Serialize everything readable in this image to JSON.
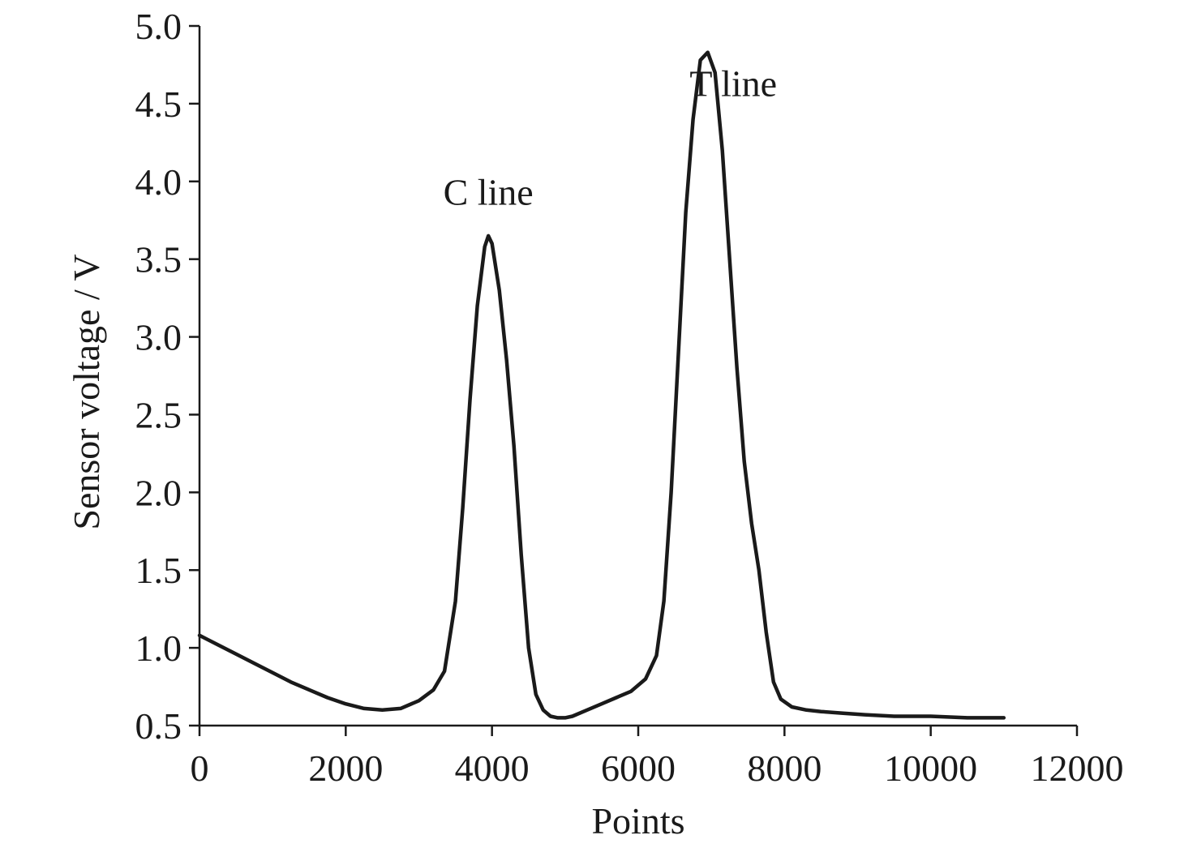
{
  "chart_data": {
    "type": "line",
    "xlabel": "Points",
    "ylabel": "Sensor voltage / V",
    "xlim": [
      0,
      12000
    ],
    "ylim": [
      0.5,
      5.0
    ],
    "xticks": [
      0,
      2000,
      4000,
      6000,
      8000,
      10000,
      12000
    ],
    "yticks": [
      "0.5",
      "1.0",
      "1.5",
      "2.0",
      "2.5",
      "3.0",
      "3.5",
      "4.0",
      "4.5",
      "5.0"
    ],
    "grid": false,
    "annotations": [
      {
        "text": "C line",
        "x": 3950,
        "y": 3.85
      },
      {
        "text": "T line",
        "x": 7300,
        "y": 4.55
      }
    ],
    "series": [
      {
        "x": [
          0,
          250,
          500,
          750,
          1000,
          1250,
          1500,
          1750,
          2000,
          2250,
          2500,
          2750,
          3000,
          3200,
          3350,
          3500,
          3600,
          3700,
          3800,
          3900,
          3950,
          4000,
          4100,
          4200,
          4300,
          4400,
          4500,
          4600,
          4700,
          4800,
          4900,
          5000,
          5100,
          5300,
          5500,
          5700,
          5900,
          6100,
          6250,
          6350,
          6450,
          6550,
          6650,
          6750,
          6850,
          6950,
          7050,
          7150,
          7250,
          7350,
          7450,
          7550,
          7650,
          7750,
          7850,
          7950,
          8100,
          8300,
          8500,
          8800,
          9100,
          9500,
          10000,
          10500,
          11000
        ],
        "y": [
          1.08,
          1.02,
          0.96,
          0.9,
          0.84,
          0.78,
          0.73,
          0.68,
          0.64,
          0.61,
          0.6,
          0.61,
          0.66,
          0.73,
          0.85,
          1.3,
          1.9,
          2.6,
          3.2,
          3.58,
          3.65,
          3.6,
          3.3,
          2.85,
          2.3,
          1.6,
          1.0,
          0.7,
          0.6,
          0.56,
          0.55,
          0.55,
          0.56,
          0.6,
          0.64,
          0.68,
          0.72,
          0.8,
          0.95,
          1.3,
          2.0,
          2.9,
          3.8,
          4.4,
          4.78,
          4.83,
          4.7,
          4.2,
          3.5,
          2.8,
          2.2,
          1.8,
          1.5,
          1.1,
          0.78,
          0.67,
          0.62,
          0.6,
          0.59,
          0.58,
          0.57,
          0.56,
          0.56,
          0.55,
          0.55
        ]
      }
    ]
  }
}
